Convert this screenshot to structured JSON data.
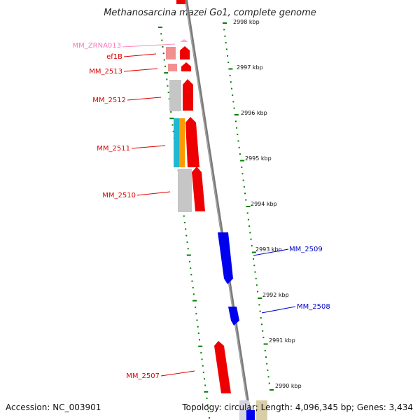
{
  "title": "Methanosarcina mazei Go1, complete genome",
  "footer": {
    "accession": "Accession: NC_003901",
    "summary": "Topology: circular; Length: 4,096,345 bp; Genes: 3,434"
  },
  "colors": {
    "forward_gene": "#ff0000",
    "reverse_gene": "#0000ff",
    "rrna_feature": "#ff66aa",
    "ruler": "#008000",
    "backbone": "#808080",
    "label_red": "#dd0000",
    "label_pink": "#ff77bb",
    "label_blue": "#0000cc"
  },
  "ruler_labels": [
    "2998 kbp",
    "2997 kbp",
    "2996 kbp",
    "2995 kbp",
    "2994 kbp",
    "2993 kbp",
    "2992 kbp",
    "2991 kbp",
    "2990 kbp"
  ],
  "gene_labels": [
    {
      "text": "MM_ZRNA013",
      "color": "pink"
    },
    {
      "text": "ef1B",
      "color": "red"
    },
    {
      "text": "MM_2513",
      "color": "red"
    },
    {
      "text": "MM_2512",
      "color": "red"
    },
    {
      "text": "MM_2511",
      "color": "red"
    },
    {
      "text": "MM_2510",
      "color": "red"
    },
    {
      "text": "MM_2507",
      "color": "red"
    },
    {
      "text": "MM_2509",
      "color": "blue"
    },
    {
      "text": "MM_2508",
      "color": "blue"
    }
  ]
}
